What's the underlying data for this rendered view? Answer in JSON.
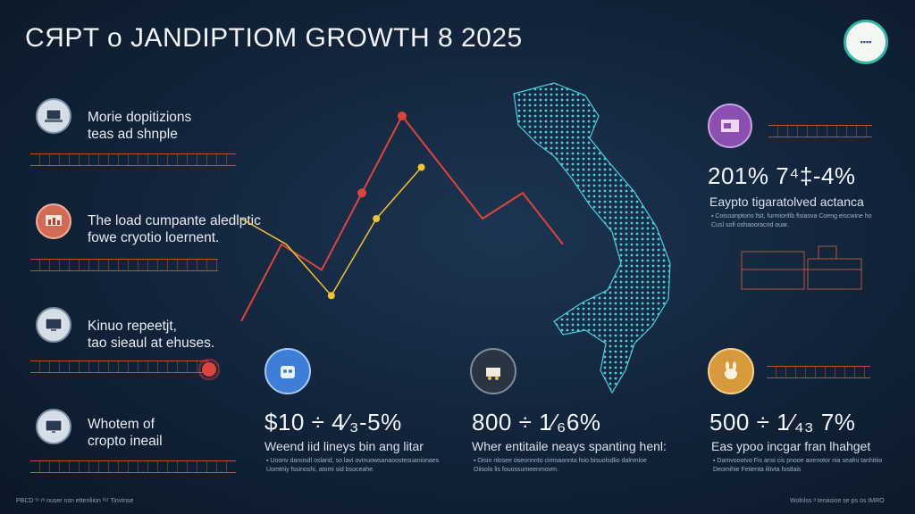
{
  "header": {
    "title": "CЯPT ᴏ JANDIPTIOM GROWTH 8 2025",
    "logo_text": "▪▪▪▪"
  },
  "left_items": [
    {
      "line1": "Morie dopitizions",
      "line2": "teas ad shnple",
      "icon": "laptop-icon"
    },
    {
      "line1": "The load cumpante aledlptic",
      "line2": "fowe cryotio loernent.",
      "icon": "chart-board-icon"
    },
    {
      "line1": "Kinuo repeetjt,",
      "line2": "tao sieaul at ehuses.",
      "icon": "screen-icon"
    },
    {
      "line1": "Whotem of",
      "line2": "cropto ineail",
      "icon": "monitor-icon"
    }
  ],
  "right_top": {
    "stat": "201%  7⁴‡‑4%",
    "sub": "Eaypto tigaratolved actanca",
    "bullet1": "▪ Coisoanptorio fsit, furmionfib fisiasva Coeng eiscwine ho",
    "bullet2": "  Cusl sofi oshaooracnd ouar."
  },
  "stats": [
    {
      "value": "$10 ÷ 4⁄₃‑5%",
      "label": "Weend iid lineys bin ang litar",
      "bullet1": "▪ Uoonv danosdl oslarid, so lavi ovinuowsanaoostesuanionaes",
      "bullet2": "  Uomtriiy fssinoshi, atomi sid bsoceahe.",
      "icon": "robot-icon"
    },
    {
      "value": "800 ÷ 1⁄₆6%",
      "label": "Wher entitaile neays spanting henl:",
      "bullet1": "▪ Oisin nlosee oseonnnto cimnaonnta foio bisuolsdlio dalnmloe",
      "bullet2": "  Oiisolo lis fouossumeenmovm.",
      "icon": "cart-icon"
    },
    {
      "value": "500 ÷ 1⁄₄₃ 7%",
      "label": "Eas ypoo incgar fran lhahget",
      "bullet1": "▪ Damvoootvo Fis ansi cis pnooe aoenotor nia seafni tanhitiio",
      "bullet2": "  Deomihie Fetienta ilitvta fostlais",
      "icon": "bunny-icon"
    }
  ],
  "footer": {
    "left": "PBCD ᵗᵒ ʸˢ  nuser nsn ettenliion ʰᶻᵗ Tinvtnse",
    "right": "Wolnlss ᵃ tenasioe se ps os IMRO"
  },
  "chart_data": {
    "type": "line",
    "title": "",
    "xlabel": "",
    "ylabel": "",
    "series": [
      {
        "color": "#e0433b",
        "values": [
          0,
          3,
          2,
          5,
          8,
          6,
          4,
          5,
          3
        ]
      },
      {
        "color": "#f2c230",
        "values": [
          4,
          3,
          1,
          4,
          6
        ]
      }
    ]
  },
  "colors": {
    "background": "#13263d",
    "map_glow": "#4fd6e6",
    "red_line": "#e0433b",
    "yellow_line": "#f2c230",
    "accent_orange": "#b5563a"
  }
}
